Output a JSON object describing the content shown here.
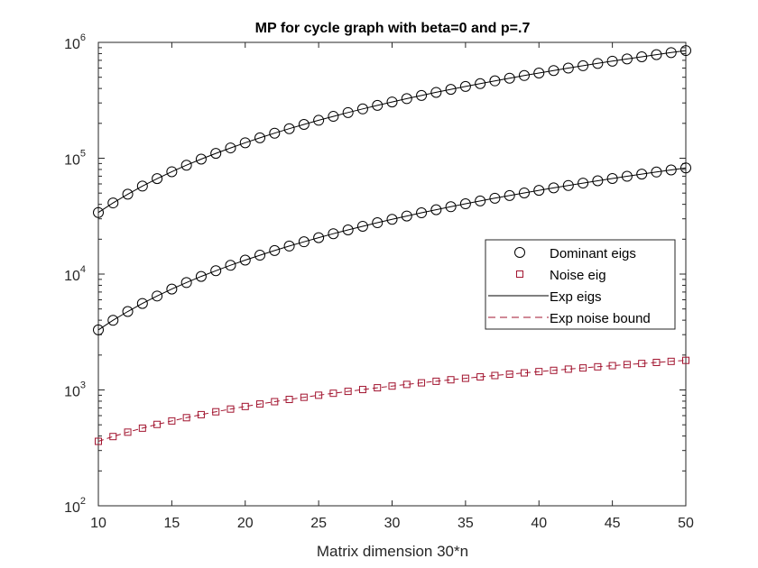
{
  "chart_data": {
    "type": "line",
    "title": "MP for cycle graph with beta=0 and p=.7",
    "xlabel": "Matrix dimension 30*n",
    "ylabel": "",
    "xlim": [
      10,
      50
    ],
    "ylim": [
      100,
      1000000
    ],
    "yscale": "log",
    "grid": false,
    "legend_placement": "right",
    "x_ticks": [
      10,
      15,
      20,
      25,
      30,
      35,
      40,
      45,
      50
    ],
    "y_ticks": [
      {
        "base": "10",
        "exp": "2"
      },
      {
        "base": "10",
        "exp": "3"
      },
      {
        "base": "10",
        "exp": "4"
      },
      {
        "base": "10",
        "exp": "5"
      },
      {
        "base": "10",
        "exp": "6"
      }
    ],
    "x": [
      10,
      11,
      12,
      13,
      14,
      15,
      16,
      17,
      18,
      19,
      20,
      21,
      22,
      23,
      24,
      25,
      26,
      27,
      28,
      29,
      30,
      31,
      32,
      33,
      34,
      35,
      36,
      37,
      38,
      39,
      40,
      41,
      42,
      43,
      44,
      45,
      46,
      47,
      48,
      49,
      50
    ],
    "series": [
      {
        "name": "Dominant eigs",
        "marker": "circle",
        "color": "#000000",
        "group": "dominant",
        "values": [
          34000,
          41140,
          48960,
          57460,
          66640,
          76500,
          87040,
          98260,
          110160,
          122740,
          136000,
          149940,
          164560,
          179860,
          195840,
          212500,
          229840,
          247860,
          266560,
          285940,
          306000,
          326740,
          348160,
          370260,
          393040,
          416500,
          440640,
          465460,
          490960,
          517140,
          544000,
          571540,
          599760,
          628660,
          658240,
          688500,
          719440,
          751060,
          783360,
          816340,
          850000
        ]
      },
      {
        "name": "",
        "marker": "circle",
        "color": "#000000",
        "group": "dominant",
        "values": [
          3300,
          3993,
          4752,
          5577,
          6468,
          7425,
          8448,
          9537,
          10692,
          11913,
          13200,
          14553,
          15972,
          17457,
          19008,
          20625,
          22308,
          24057,
          25872,
          27753,
          29700,
          31713,
          33792,
          35937,
          38148,
          40425,
          42768,
          45177,
          47652,
          50193,
          52800,
          55473,
          58212,
          61017,
          63888,
          66825,
          69828,
          72897,
          76032,
          79233,
          82500
        ]
      },
      {
        "name": "Noise eig",
        "marker": "square",
        "color": "#a2142f",
        "group": "noise",
        "values": [
          360,
          396,
          432,
          468,
          504,
          540,
          576,
          612,
          648,
          684,
          720,
          756,
          792,
          828,
          864,
          900,
          936,
          972,
          1008,
          1044,
          1080,
          1116,
          1152,
          1188,
          1224,
          1260,
          1296,
          1332,
          1368,
          1404,
          1440,
          1476,
          1512,
          1548,
          1584,
          1620,
          1656,
          1692,
          1728,
          1764,
          1800
        ]
      }
    ],
    "legend": [
      {
        "label": "Dominant eigs",
        "kind": "circle-marker",
        "color": "#000000"
      },
      {
        "label": "Noise eig",
        "kind": "square-marker",
        "color": "#a2142f"
      },
      {
        "label": "Exp eigs",
        "kind": "solid-line",
        "color": "#000000"
      },
      {
        "label": "Exp noise bound",
        "kind": "dashed-line",
        "color": "#a2142f"
      }
    ]
  }
}
